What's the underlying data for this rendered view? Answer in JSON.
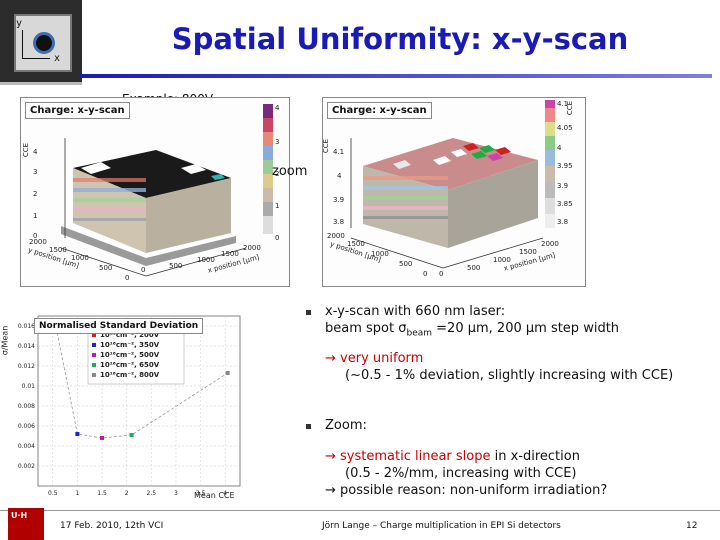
{
  "slide": {
    "title": "Spatial Uniformity: x-y-scan",
    "chip_labels": {
      "y": "y",
      "x": "x"
    },
    "caption": "Example: 800V",
    "zoom_label": "zoom"
  },
  "plot_left": {
    "title": "Charge: x-y-scan",
    "z_label": "CCE",
    "z_ticks": [
      "4",
      "3",
      "2",
      "1",
      "0"
    ],
    "colorbar_ticks": [
      "4",
      "3",
      "2",
      "1",
      "0"
    ],
    "y_ticks": [
      "2000",
      "1500",
      "1000",
      "500",
      "0"
    ],
    "x_ticks": [
      "0",
      "500",
      "1000",
      "1500",
      "2000"
    ],
    "x_label": "x position [μm]",
    "y_label": "y position [μm]"
  },
  "plot_right": {
    "title": "Charge: x-y-scan",
    "z_label": "CCE",
    "z_ticks": [
      "4.1",
      "4",
      "3.9",
      "3.8"
    ],
    "colorbar_ticks": [
      "4.1",
      "4.05",
      "4",
      "3.95",
      "3.9",
      "3.85",
      "3.8"
    ],
    "y_ticks": [
      "2000",
      "1500",
      "1000",
      "500",
      "0"
    ],
    "x_ticks": [
      "0",
      "500",
      "1000",
      "1500",
      "2000"
    ],
    "x_label": "x position [μm]",
    "y_label": "y position [μm]"
  },
  "chart_data": {
    "type": "scatter",
    "title": "Normalised Standard Deviation",
    "xlabel": "Mean CCE",
    "ylabel": "σ/Mean",
    "xlim": [
      0.2,
      4.3
    ],
    "ylim": [
      0,
      0.017
    ],
    "x_ticks": [
      "0.5",
      "1",
      "1.5",
      "2",
      "2.5",
      "3",
      "3.5",
      "4"
    ],
    "y_ticks": [
      "0.002",
      "0.004",
      "0.006",
      "0.008",
      "0.01",
      "0.012",
      "0.014",
      "0.016"
    ],
    "legend_position": "top-right",
    "series": [
      {
        "name": "10¹⁶cm⁻², 200V",
        "color": "#cc2222",
        "x": 0.55,
        "y": 0.0163
      },
      {
        "name": "10¹⁶cm⁻², 350V",
        "color": "#2222cc",
        "x": 1.0,
        "y": 0.0052
      },
      {
        "name": "10¹⁶cm⁻², 500V",
        "color": "#aa22aa",
        "x": 1.5,
        "y": 0.0048
      },
      {
        "name": "10¹⁶cm⁻², 650V",
        "color": "#22aa55",
        "x": 2.1,
        "y": 0.0051
      },
      {
        "name": "10¹⁶cm⁻², 800V",
        "color": "#888888",
        "x": 4.05,
        "y": 0.0113
      }
    ]
  },
  "bullets": {
    "b1_line1": "x-y-scan with 660 nm laser:",
    "b1_line2_a": "beam spot ",
    "b1_sigma": "σ",
    "b1_sub": "beam",
    "b1_line2_b": " =20 μm, 200 μm step width",
    "b1_arrow": "→",
    "b1_result": " very uniform",
    "b1_detail": "(~0.5 - 1% deviation, slightly increasing with CCE)",
    "b2_line1": "Zoom:",
    "b2_arrow1": "→",
    "b2_result": " systematic linear slope",
    "b2_result_tail": " in x-direction",
    "b2_detail": "(0.5 - 2%/mm, increasing with CCE)",
    "b2_arrow2": "→",
    "b2_reason": " possible reason: non-uniform irradiation?"
  },
  "footer": {
    "logo": "U·H",
    "date": "17 Feb. 2010,  12th VCI",
    "center": "Jörn Lange – Charge multiplication in EPI Si detectors",
    "page": "12"
  }
}
